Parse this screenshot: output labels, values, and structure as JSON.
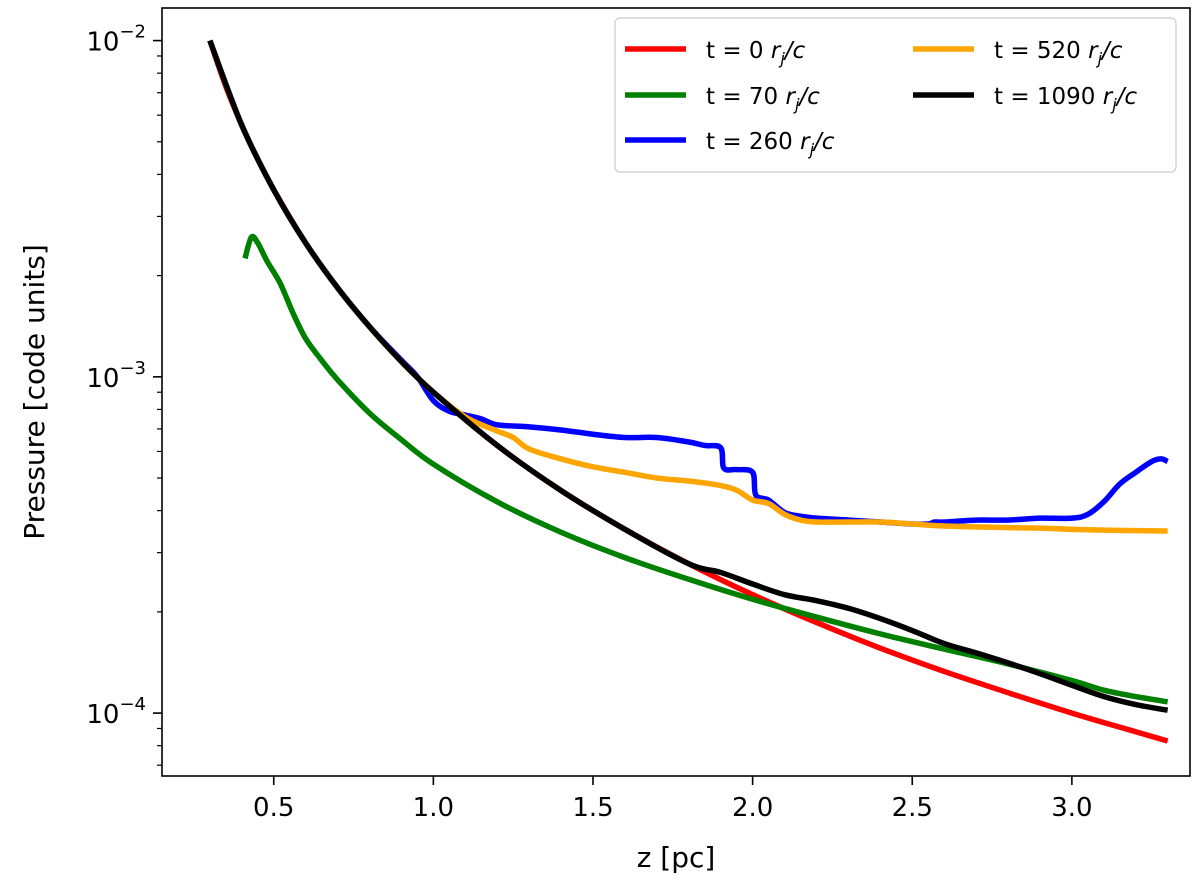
{
  "chart_data": {
    "type": "line",
    "title": "",
    "xlabel": "z [pc]",
    "ylabel": "Pressure [code units]",
    "xscale": "linear",
    "yscale": "log",
    "xlim": [
      0.15,
      3.37
    ],
    "ylim": [
      6.5e-05,
      0.0125
    ],
    "grid": false,
    "legend_position": "top-right",
    "legend_columns": 2,
    "x_ticks": [
      {
        "value": 0.5,
        "label": "0.5"
      },
      {
        "value": 1.0,
        "label": "1.0"
      },
      {
        "value": 1.5,
        "label": "1.5"
      },
      {
        "value": 2.0,
        "label": "2.0"
      },
      {
        "value": 2.5,
        "label": "2.5"
      },
      {
        "value": 3.0,
        "label": "3.0"
      }
    ],
    "y_ticks": [
      {
        "value": 0.01,
        "base": "10",
        "exponent": "−2"
      },
      {
        "value": 0.001,
        "base": "10",
        "exponent": "−3"
      },
      {
        "value": 0.0001,
        "base": "10",
        "exponent": "−4"
      }
    ],
    "series": [
      {
        "name": "t = 0 r_j/c",
        "legend_prefix": "t = 0 ",
        "color": "#ff0000",
        "x": [
          0.3,
          0.35,
          0.4,
          0.45,
          0.5,
          0.6,
          0.7,
          0.8,
          0.9,
          1.0,
          1.2,
          1.4,
          1.6,
          1.8,
          2.0,
          2.2,
          2.4,
          2.6,
          2.8,
          3.0,
          3.2,
          3.3
        ],
        "y": [
          0.01,
          0.0073,
          0.0056,
          0.00444,
          0.0036,
          0.0025,
          0.00184,
          0.00141,
          0.00111,
          0.0009,
          0.000625,
          0.000459,
          0.000352,
          0.000278,
          0.000225,
          0.000186,
          0.000156,
          0.000133,
          0.000115,
          0.0001,
          8.8e-05,
          8.26e-05
        ]
      },
      {
        "name": "t = 70 r_j/c",
        "legend_prefix": "t = 70 ",
        "color": "#008000",
        "x": [
          0.41,
          0.43,
          0.45,
          0.48,
          0.52,
          0.56,
          0.6,
          0.65,
          0.7,
          0.8,
          0.9,
          1.0,
          1.2,
          1.4,
          1.6,
          1.8,
          2.0,
          2.2,
          2.4,
          2.6,
          2.8,
          3.0,
          3.1,
          3.2,
          3.3
        ],
        "y": [
          0.00225,
          0.0026,
          0.0025,
          0.0022,
          0.0019,
          0.00155,
          0.0013,
          0.00112,
          0.00098,
          0.00078,
          0.00065,
          0.00055,
          0.000425,
          0.000345,
          0.00029,
          0.00025,
          0.000218,
          0.000193,
          0.000172,
          0.000155,
          0.00014,
          0.000125,
          0.000117,
          0.000112,
          0.000108
        ]
      },
      {
        "name": "t = 260 r_j/c",
        "legend_prefix": "t = 260 ",
        "color": "#0000ff",
        "x": [
          0.3,
          0.4,
          0.5,
          0.6,
          0.7,
          0.8,
          0.9,
          0.95,
          1.0,
          1.05,
          1.1,
          1.15,
          1.2,
          1.3,
          1.4,
          1.5,
          1.6,
          1.7,
          1.8,
          1.85,
          1.9,
          1.91,
          1.95,
          2.0,
          2.01,
          2.05,
          2.1,
          2.15,
          2.2,
          2.3,
          2.4,
          2.5,
          2.55,
          2.57,
          2.6,
          2.7,
          2.8,
          2.9,
          3.0,
          3.05,
          3.1,
          3.15,
          3.2,
          3.25,
          3.28,
          3.3
        ],
        "y": [
          0.01,
          0.0056,
          0.0036,
          0.0025,
          0.00184,
          0.00141,
          0.00112,
          0.001,
          0.00085,
          0.00079,
          0.00077,
          0.00075,
          0.00072,
          0.00071,
          0.000695,
          0.000675,
          0.00066,
          0.00066,
          0.00064,
          0.000625,
          0.000615,
          0.000535,
          0.00053,
          0.00052,
          0.000445,
          0.00043,
          0.000395,
          0.000385,
          0.00038,
          0.000375,
          0.00037,
          0.000365,
          0.000365,
          0.00037,
          0.00037,
          0.000375,
          0.000375,
          0.00038,
          0.00038,
          0.00039,
          0.000425,
          0.00048,
          0.00052,
          0.00056,
          0.00057,
          0.00056
        ]
      },
      {
        "name": "t = 520 r_j/c",
        "legend_prefix": "t = 520 ",
        "color": "#ffa500",
        "x": [
          0.3,
          0.4,
          0.5,
          0.6,
          0.7,
          0.8,
          0.9,
          1.0,
          1.1,
          1.2,
          1.25,
          1.3,
          1.4,
          1.5,
          1.6,
          1.7,
          1.8,
          1.9,
          1.95,
          2.0,
          2.05,
          2.1,
          2.15,
          2.2,
          2.3,
          2.4,
          2.5,
          2.6,
          2.7,
          2.8,
          2.9,
          3.0,
          3.1,
          3.2,
          3.3
        ],
        "y": [
          0.01,
          0.0056,
          0.0036,
          0.0025,
          0.00184,
          0.00141,
          0.00111,
          0.0009,
          0.00076,
          0.00069,
          0.00066,
          0.00061,
          0.00057,
          0.00054,
          0.00052,
          0.0005,
          0.00049,
          0.000475,
          0.00046,
          0.00043,
          0.00042,
          0.00039,
          0.000375,
          0.00037,
          0.00037,
          0.00037,
          0.000365,
          0.00036,
          0.000358,
          0.000356,
          0.000355,
          0.000352,
          0.00035,
          0.000349,
          0.000348
        ]
      },
      {
        "name": "t = 1090 r_j/c",
        "legend_prefix": "t = 1090 ",
        "color": "#000000",
        "x": [
          0.3,
          0.4,
          0.5,
          0.6,
          0.7,
          0.8,
          0.9,
          1.0,
          1.2,
          1.4,
          1.6,
          1.8,
          1.9,
          2.0,
          2.1,
          2.2,
          2.3,
          2.4,
          2.5,
          2.6,
          2.7,
          2.8,
          2.9,
          3.0,
          3.1,
          3.2,
          3.3
        ],
        "y": [
          0.01,
          0.0056,
          0.0036,
          0.0025,
          0.00184,
          0.00141,
          0.00111,
          0.0009,
          0.000625,
          0.000459,
          0.000352,
          0.000278,
          0.000262,
          0.000242,
          0.000225,
          0.000216,
          0.000205,
          0.000191,
          0.000176,
          0.000161,
          0.000151,
          0.000141,
          0.000131,
          0.000121,
          0.000112,
          0.000106,
          0.000102
        ]
      }
    ]
  }
}
